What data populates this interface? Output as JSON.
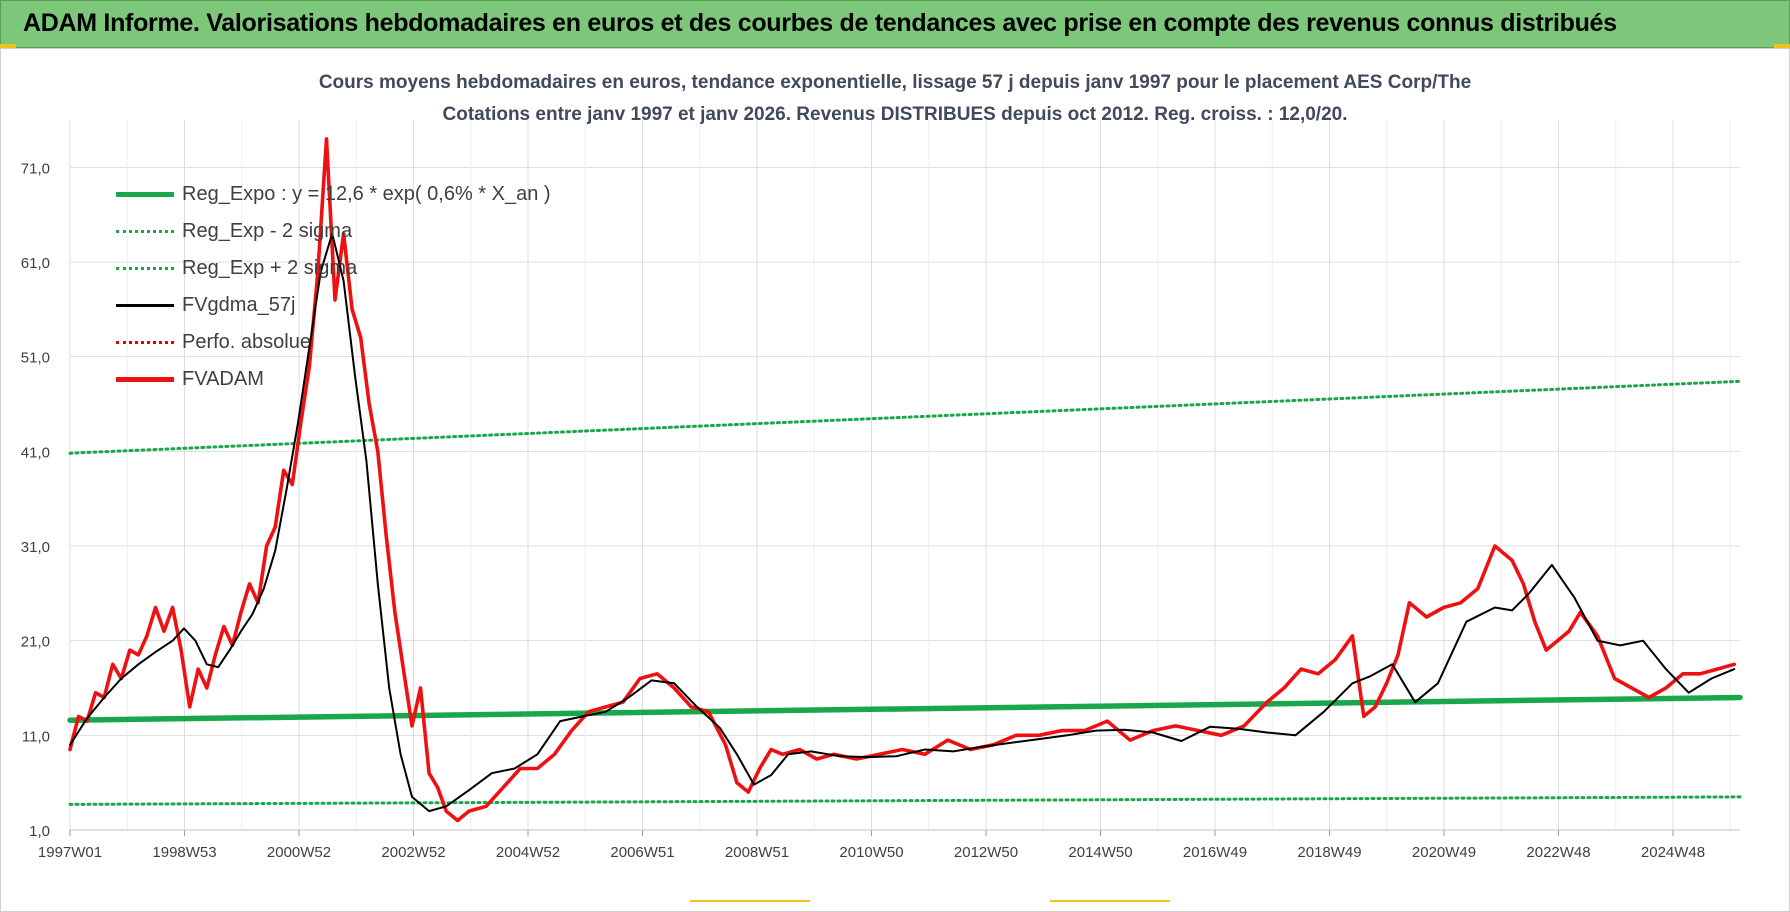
{
  "banner": {
    "title": "ADAM Informe. Valorisations hebdomadaires en euros et des courbes de tendances avec prise en compte des revenus connus distribués"
  },
  "colors": {
    "banner_bg": "#7dc77a",
    "reg_expo": "#1aa64a",
    "sigma": "#1aa64a",
    "fvgdma": "#000000",
    "perfo": "#e00000",
    "fvadam": "#ee1111",
    "grid": "#dddddd",
    "accent_corner": "#f2c21b"
  },
  "chart_data": {
    "type": "line",
    "title_line1": "Cours moyens hebdomadaires en euros, tendance exponentielle, lissage 57 j depuis janv 1997  pour le placement AES Corp/The",
    "title_line2": "Cotations entre janv 1997 et janv 2026. Revenus DISTRIBUES depuis oct 2012.  Reg. croiss. : 12,0/20.",
    "x_ticks": [
      "1997W01",
      "1998W53",
      "2000W52",
      "2002W52",
      "2004W52",
      "2006W51",
      "2008W51",
      "2010W50",
      "2012W50",
      "2014W50",
      "2016W49",
      "2018W49",
      "2020W49",
      "2022W48",
      "2024W48"
    ],
    "y_ticks": [
      "1,0",
      "11,0",
      "21,0",
      "31,0",
      "41,0",
      "51,0",
      "61,0",
      "71,0"
    ],
    "ylim": [
      1,
      76
    ],
    "xlim": [
      1997.0,
      2026.3
    ],
    "grid": true,
    "legend_position": "top-left",
    "legend": [
      {
        "label": "Reg_Expo : y = 12,6 * exp( 0,6% *  X_an )",
        "style": "solid-thick",
        "color_key": "reg_expo"
      },
      {
        "label": "Reg_Exp - 2 sigma",
        "style": "dotted",
        "color_key": "sigma"
      },
      {
        "label": "Reg_Exp + 2 sigma",
        "style": "dotted",
        "color_key": "sigma"
      },
      {
        "label": "FVgdma_57j",
        "style": "solid",
        "color_key": "fvgdma"
      },
      {
        "label": "Perfo. absolue",
        "style": "dotted",
        "color_key": "perfo"
      },
      {
        "label": "FVADAM",
        "style": "solid-thick",
        "color_key": "fvadam"
      }
    ],
    "series": [
      {
        "name": "Reg_Expo : y = 12,6 * exp( 0,6% *  X_an )",
        "x": [
          1997.0,
          2026.3
        ],
        "y": [
          12.6,
          15.0
        ]
      },
      {
        "name": "Reg_Exp - 2 sigma",
        "x": [
          1997.0,
          2026.3
        ],
        "y": [
          3.7,
          4.5
        ]
      },
      {
        "name": "Reg_Exp + 2 sigma",
        "x": [
          1997.0,
          2026.3
        ],
        "y": [
          40.8,
          48.4
        ]
      },
      {
        "name": "FVgdma_57j",
        "x": [
          1997.0,
          1997.3,
          1997.6,
          1997.9,
          1998.2,
          1998.5,
          1998.8,
          1999.0,
          1999.2,
          1999.4,
          1999.6,
          1999.8,
          2000.0,
          2000.2,
          2000.4,
          2000.6,
          2000.8,
          2001.0,
          2001.2,
          2001.4,
          2001.6,
          2001.8,
          2002.0,
          2002.2,
          2002.4,
          2002.6,
          2002.8,
          2003.0,
          2003.3,
          2003.6,
          2004.0,
          2004.4,
          2004.8,
          2005.2,
          2005.6,
          2006.0,
          2006.4,
          2006.8,
          2007.2,
          2007.6,
          2008.0,
          2008.4,
          2008.7,
          2009.0,
          2009.3,
          2009.6,
          2010.0,
          2010.5,
          2011.0,
          2011.5,
          2012.0,
          2012.5,
          2013.0,
          2013.5,
          2014.0,
          2014.5,
          2015.0,
          2015.5,
          2016.0,
          2016.5,
          2017.0,
          2017.5,
          2018.0,
          2018.5,
          2019.0,
          2019.5,
          2019.8,
          2020.2,
          2020.6,
          2021.0,
          2021.5,
          2022.0,
          2022.3,
          2022.6,
          2023.0,
          2023.4,
          2023.8,
          2024.2,
          2024.6,
          2025.0,
          2025.4,
          2025.8,
          2026.2
        ],
        "y": [
          10.0,
          12.8,
          15.0,
          17.0,
          18.5,
          19.8,
          21.0,
          22.3,
          21.0,
          18.5,
          18.2,
          20.0,
          22.0,
          23.8,
          26.5,
          30.5,
          37.0,
          44.0,
          52.0,
          60.0,
          64.0,
          59.0,
          49.0,
          40.0,
          27.0,
          16.0,
          9.0,
          4.5,
          3.0,
          3.5,
          5.2,
          7.0,
          7.5,
          9.0,
          12.5,
          13.0,
          13.5,
          15.0,
          16.8,
          16.5,
          14.0,
          11.8,
          9.0,
          5.8,
          6.8,
          9.0,
          9.3,
          8.8,
          8.7,
          8.8,
          9.5,
          9.3,
          9.8,
          10.2,
          10.6,
          11.0,
          11.5,
          11.6,
          11.3,
          10.4,
          11.9,
          11.7,
          11.3,
          11.0,
          13.5,
          16.5,
          17.2,
          18.5,
          14.5,
          16.5,
          23.0,
          24.5,
          24.2,
          26.0,
          29.0,
          25.5,
          21.0,
          20.5,
          21.0,
          18.0,
          15.5,
          17.0,
          18.0
        ]
      },
      {
        "name": "FVADAM",
        "x": [
          1997.0,
          1997.15,
          1997.3,
          1997.45,
          1997.6,
          1997.75,
          1997.9,
          1998.05,
          1998.2,
          1998.35,
          1998.5,
          1998.65,
          1998.8,
          1998.95,
          1999.1,
          1999.25,
          1999.4,
          1999.55,
          1999.7,
          1999.85,
          2000.0,
          2000.15,
          2000.3,
          2000.45,
          2000.6,
          2000.75,
          2000.9,
          2001.05,
          2001.2,
          2001.35,
          2001.5,
          2001.65,
          2001.8,
          2001.95,
          2002.1,
          2002.25,
          2002.4,
          2002.55,
          2002.7,
          2002.85,
          2003.0,
          2003.15,
          2003.3,
          2003.45,
          2003.6,
          2003.8,
          2004.0,
          2004.3,
          2004.6,
          2004.9,
          2005.2,
          2005.5,
          2005.8,
          2006.1,
          2006.4,
          2006.7,
          2007.0,
          2007.3,
          2007.6,
          2007.9,
          2008.2,
          2008.5,
          2008.7,
          2008.9,
          2009.1,
          2009.3,
          2009.5,
          2009.8,
          2010.1,
          2010.4,
          2010.8,
          2011.2,
          2011.6,
          2012.0,
          2012.4,
          2012.8,
          2013.2,
          2013.6,
          2014.0,
          2014.4,
          2014.8,
          2015.2,
          2015.6,
          2016.0,
          2016.4,
          2016.8,
          2017.2,
          2017.6,
          2018.0,
          2018.3,
          2018.6,
          2018.9,
          2019.2,
          2019.5,
          2019.7,
          2019.9,
          2020.1,
          2020.3,
          2020.5,
          2020.8,
          2021.1,
          2021.4,
          2021.7,
          2022.0,
          2022.3,
          2022.5,
          2022.7,
          2022.9,
          2023.1,
          2023.3,
          2023.5,
          2023.8,
          2024.1,
          2024.4,
          2024.7,
          2025.0,
          2025.3,
          2025.6,
          2025.9,
          2026.2
        ],
        "y": [
          9.5,
          13.0,
          12.5,
          15.5,
          15.0,
          18.5,
          17.0,
          20.0,
          19.5,
          21.5,
          24.5,
          22.0,
          24.5,
          20.0,
          14.0,
          18.0,
          16.0,
          19.5,
          22.5,
          20.5,
          24.0,
          27.0,
          25.0,
          31.0,
          33.0,
          39.0,
          37.5,
          44.0,
          50.0,
          60.0,
          74.0,
          57.0,
          64.0,
          56.0,
          53.0,
          46.0,
          41.0,
          32.0,
          24.0,
          18.0,
          12.0,
          16.0,
          7.0,
          5.5,
          3.0,
          2.0,
          3.0,
          3.5,
          5.5,
          7.5,
          7.5,
          9.0,
          11.5,
          13.5,
          14.0,
          14.5,
          17.0,
          17.5,
          16.0,
          14.0,
          13.5,
          10.0,
          6.0,
          5.0,
          7.5,
          9.5,
          9.0,
          9.5,
          8.5,
          9.0,
          8.5,
          9.0,
          9.5,
          9.0,
          10.5,
          9.5,
          10.0,
          11.0,
          11.0,
          11.5,
          11.5,
          12.5,
          10.5,
          11.5,
          12.0,
          11.5,
          11.0,
          12.0,
          14.5,
          16.0,
          18.0,
          17.5,
          19.0,
          21.5,
          13.0,
          14.0,
          16.5,
          19.5,
          25.0,
          23.5,
          24.5,
          25.0,
          26.5,
          31.0,
          29.5,
          27.0,
          23.0,
          20.0,
          21.0,
          22.0,
          24.0,
          21.5,
          17.0,
          16.0,
          15.0,
          16.0,
          17.5,
          17.5,
          18.0,
          18.5
        ]
      }
    ]
  }
}
